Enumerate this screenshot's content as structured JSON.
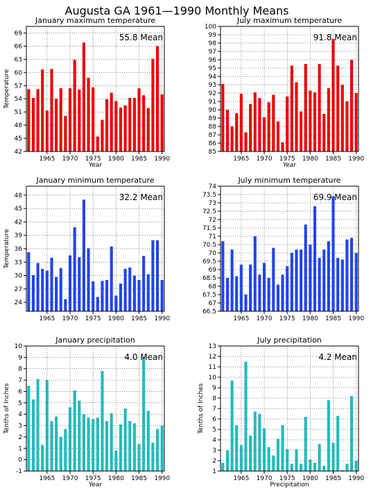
{
  "page": {
    "title": "Augusta GA   1961—1990 Monthly Means"
  },
  "chart_data": [
    {
      "type": "bar",
      "title": "January maximum temperature",
      "xlabel": "Year",
      "ylabel": "Temperature",
      "mean_label": "55.8  Mean",
      "color": "#ee0000",
      "ylim": [
        42,
        70.5
      ],
      "yticks": [
        42,
        45,
        48,
        51,
        54,
        57,
        60,
        63,
        66,
        69
      ],
      "xticks": [
        1965,
        1970,
        1975,
        1980,
        1985,
        1990
      ],
      "xlim": [
        1960.5,
        1990.5
      ],
      "grid": true,
      "x": [
        1961,
        1962,
        1963,
        1964,
        1965,
        1966,
        1967,
        1968,
        1969,
        1970,
        1971,
        1972,
        1973,
        1974,
        1975,
        1976,
        1977,
        1978,
        1979,
        1980,
        1981,
        1982,
        1983,
        1984,
        1985,
        1986,
        1987,
        1988,
        1989,
        1990
      ],
      "values": [
        56.2,
        54.2,
        56.2,
        60.7,
        51.3,
        60.8,
        54,
        56.4,
        50.1,
        56.4,
        62.9,
        56.1,
        66.8,
        58.8,
        56.6,
        45.4,
        49.2,
        53.9,
        55.4,
        53.5,
        52,
        52.5,
        54.2,
        54.2,
        56.4,
        54.8,
        51.9,
        63.1,
        66,
        55
      ]
    },
    {
      "type": "bar",
      "title": "July maximum temperature",
      "xlabel": "Year",
      "ylabel": "",
      "mean_label": "91.8  Mean",
      "color": "#ee0000",
      "ylim": [
        85,
        100
      ],
      "yticks": [
        85,
        86,
        87,
        88,
        89,
        90,
        91,
        92,
        93,
        94,
        95,
        96,
        97,
        98,
        99,
        100
      ],
      "xticks": [
        1965,
        1970,
        1975,
        1980,
        1985,
        1990
      ],
      "xlim": [
        1960.5,
        1990.5
      ],
      "grid": true,
      "x": [
        1961,
        1962,
        1963,
        1964,
        1965,
        1966,
        1967,
        1968,
        1969,
        1970,
        1971,
        1972,
        1973,
        1974,
        1975,
        1976,
        1977,
        1978,
        1979,
        1980,
        1981,
        1982,
        1983,
        1984,
        1985,
        1986,
        1987,
        1988,
        1989,
        1990
      ],
      "values": [
        93.1,
        90.0,
        88,
        89.6,
        91.9,
        87.3,
        90.7,
        92.1,
        91.4,
        89.1,
        90.9,
        91.8,
        88.6,
        86.1,
        91.6,
        95.3,
        93.3,
        89.8,
        95.5,
        92.3,
        92.1,
        95.5,
        89.5,
        92.6,
        98.5,
        95.3,
        93,
        91,
        96,
        92
      ]
    },
    {
      "type": "bar",
      "title": "January minimum temperature",
      "xlabel": "",
      "ylabel": "Temperature",
      "mean_label": "32.2  Mean",
      "color": "#2244ee",
      "ylim": [
        22,
        50
      ],
      "yticks": [
        24,
        27,
        30,
        33,
        36,
        39,
        42,
        45,
        48
      ],
      "xticks": [
        1965,
        1970,
        1975,
        1980,
        1985,
        1990
      ],
      "xlim": [
        1960.5,
        1990.5
      ],
      "grid": true,
      "x": [
        1961,
        1962,
        1963,
        1964,
        1965,
        1966,
        1967,
        1968,
        1969,
        1970,
        1971,
        1972,
        1973,
        1974,
        1975,
        1976,
        1977,
        1978,
        1979,
        1980,
        1981,
        1982,
        1983,
        1984,
        1985,
        1986,
        1987,
        1988,
        1989,
        1990
      ],
      "values": [
        35.2,
        30.1,
        32.8,
        31.5,
        31.1,
        34,
        29.7,
        31.7,
        24.7,
        34.5,
        40.8,
        34.1,
        47,
        36.1,
        28.7,
        25.2,
        28.8,
        29,
        36.5,
        25.5,
        28.2,
        31.5,
        31.8,
        30,
        29,
        34.4,
        30.3,
        37.9,
        37.9,
        29
      ]
    },
    {
      "type": "bar",
      "title": "July minimum temperature",
      "xlabel": "",
      "ylabel": "",
      "mean_label": "69.9  Mean",
      "color": "#2244ee",
      "ylim": [
        66.5,
        74
      ],
      "yticks": [
        66.5,
        67,
        67.5,
        68,
        68.5,
        69,
        69.5,
        70,
        70.5,
        71,
        71.5,
        72,
        72.5,
        73,
        73.5,
        74
      ],
      "xticks": [
        1965,
        1970,
        1975,
        1980,
        1985,
        1990
      ],
      "xlim": [
        1960.5,
        1990.5
      ],
      "grid": true,
      "x": [
        1961,
        1962,
        1963,
        1964,
        1965,
        1966,
        1967,
        1968,
        1969,
        1970,
        1971,
        1972,
        1973,
        1974,
        1975,
        1976,
        1977,
        1978,
        1979,
        1980,
        1981,
        1982,
        1983,
        1984,
        1985,
        1986,
        1987,
        1988,
        1989,
        1990
      ],
      "values": [
        70.7,
        68.5,
        70.2,
        68.6,
        69.3,
        67.5,
        69.3,
        71,
        68.7,
        69.4,
        68.5,
        70.3,
        68.1,
        68.7,
        69.2,
        70,
        70.2,
        70.2,
        71.7,
        70.5,
        72.8,
        69.7,
        70.2,
        70.7,
        73.4,
        69.7,
        69.6,
        70.8,
        70.9,
        70
      ]
    },
    {
      "type": "bar",
      "title": "January precipitation",
      "xlabel": "Year",
      "ylabel": "Tenths of Inches",
      "mean_label": "4.0  Mean",
      "color": "#22bbbb",
      "ylim": [
        -1,
        10
      ],
      "yticks": [
        -1,
        0,
        1,
        2,
        3,
        4,
        5,
        6,
        7,
        8,
        9,
        10
      ],
      "xticks": [
        1965,
        1970,
        1975,
        1980,
        1985,
        1990
      ],
      "xlim": [
        1960.5,
        1990.5
      ],
      "grid": true,
      "x": [
        1961,
        1962,
        1963,
        1964,
        1965,
        1966,
        1967,
        1968,
        1969,
        1970,
        1971,
        1972,
        1973,
        1974,
        1975,
        1976,
        1977,
        1978,
        1979,
        1980,
        1981,
        1982,
        1983,
        1984,
        1985,
        1986,
        1987,
        1988,
        1989,
        1990
      ],
      "values": [
        6.5,
        5.3,
        7.1,
        1.3,
        7,
        3.4,
        3.8,
        2,
        2.7,
        4.6,
        6.1,
        5.2,
        4,
        3.7,
        3.6,
        3.7,
        7.8,
        3.4,
        4.1,
        0.8,
        3.1,
        4.5,
        3.4,
        3.2,
        1.4,
        9,
        4.3,
        1.5,
        2.7,
        3
      ]
    },
    {
      "type": "bar",
      "title": "July precipitation",
      "xlabel": "Precipitation",
      "ylabel": "Tenths of Inches",
      "mean_label": "4.2  Mean",
      "color": "#22bbbb",
      "ylim": [
        1,
        13
      ],
      "yticks": [
        1,
        2,
        3,
        4,
        5,
        6,
        7,
        8,
        9,
        10,
        11,
        12,
        13
      ],
      "xticks": [
        1965,
        1970,
        1975,
        1980,
        1985,
        1990
      ],
      "xlim": [
        1960.5,
        1990.5
      ],
      "grid": true,
      "x": [
        1961,
        1962,
        1963,
        1964,
        1965,
        1966,
        1967,
        1968,
        1969,
        1970,
        1971,
        1972,
        1973,
        1974,
        1975,
        1976,
        1977,
        1978,
        1979,
        1980,
        1981,
        1982,
        1983,
        1984,
        1985,
        1986,
        1987,
        1988,
        1989,
        1990
      ],
      "values": [
        1.8,
        3,
        9.7,
        5.4,
        3.5,
        11.5,
        4.4,
        6.7,
        6.5,
        5.1,
        3.3,
        2.5,
        4.1,
        5.4,
        3.1,
        1.7,
        3.1,
        1.7,
        6.2,
        2.1,
        1.8,
        3.6,
        1.5,
        7.8,
        3.7,
        6.3,
        1.1,
        1.7,
        8.2,
        2
      ]
    }
  ]
}
